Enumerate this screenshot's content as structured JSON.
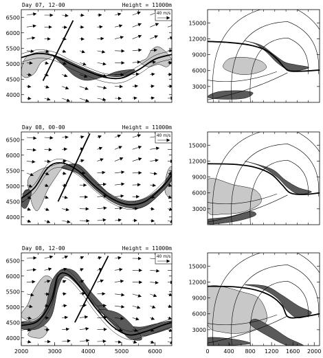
{
  "chart_data": [
    {
      "type": "contour-vector",
      "panel": "left-1",
      "title_left": "Day 07, 12-00",
      "title_right": "Height = 11000m",
      "reference_vector": "40 m/s",
      "xlim": [
        2000,
        6500
      ],
      "ylim": [
        3750,
        6750
      ],
      "x_ticks": [],
      "y_ticks": [
        "4000",
        "4500",
        "5000",
        "5500",
        "6000",
        "6500"
      ],
      "cross_section_line": [
        [
          2650,
          4450
        ],
        [
          3550,
          6400
        ]
      ],
      "front_line": [
        [
          2000,
          5200
        ],
        [
          2500,
          5330
        ],
        [
          3000,
          5250
        ],
        [
          3500,
          4980
        ],
        [
          4000,
          4750
        ],
        [
          4500,
          4560
        ],
        [
          5000,
          4540
        ],
        [
          5500,
          4800
        ],
        [
          6000,
          5150
        ],
        [
          6500,
          5300
        ]
      ],
      "light_shading": [
        [
          [
            2000,
            4700
          ],
          [
            2150,
            4550
          ],
          [
            2400,
            4700
          ],
          [
            2600,
            5050
          ],
          [
            2900,
            5220
          ],
          [
            2700,
            5380
          ],
          [
            2350,
            5330
          ],
          [
            2100,
            5150
          ]
        ],
        [
          [
            5550,
            5050
          ],
          [
            5750,
            5180
          ],
          [
            5900,
            5450
          ],
          [
            6100,
            5550
          ],
          [
            6350,
            5350
          ],
          [
            6500,
            5100
          ],
          [
            6350,
            4900
          ],
          [
            6100,
            4980
          ],
          [
            5800,
            4900
          ]
        ]
      ],
      "dark_shading": [
        [
          [
            2900,
            5300
          ],
          [
            3300,
            5150
          ],
          [
            3700,
            4950
          ],
          [
            4100,
            4760
          ],
          [
            4500,
            4620
          ],
          [
            4900,
            4580
          ],
          [
            5200,
            4650
          ],
          [
            5400,
            4800
          ],
          [
            5150,
            4800
          ],
          [
            4800,
            4730
          ],
          [
            4400,
            4560
          ],
          [
            3950,
            4460
          ],
          [
            3600,
            4600
          ],
          [
            3300,
            4900
          ],
          [
            3050,
            5150
          ]
        ]
      ]
    },
    {
      "type": "contour",
      "panel": "right-1",
      "xlim": [
        0,
        2100
      ],
      "ylim": [
        0,
        17500
      ],
      "x_ticks": [],
      "y_ticks": [
        "3000",
        "6000",
        "9000",
        "12000",
        "15000"
      ],
      "front_line": [
        [
          0,
          11500
        ],
        [
          400,
          11300
        ],
        [
          800,
          10800
        ],
        [
          1100,
          9800
        ],
        [
          1300,
          8200
        ],
        [
          1450,
          6500
        ],
        [
          1550,
          5900
        ],
        [
          1800,
          5900
        ],
        [
          2100,
          6100
        ]
      ],
      "light_shading": [
        [
          [
            300,
            6500
          ],
          [
            600,
            5300
          ],
          [
            900,
            5500
          ],
          [
            1100,
            6500
          ],
          [
            1000,
            7800
          ],
          [
            700,
            8500
          ],
          [
            400,
            8200
          ]
        ]
      ],
      "dark_shading": [
        [
          [
            700,
            11600
          ],
          [
            900,
            11000
          ],
          [
            1100,
            9500
          ],
          [
            1300,
            7500
          ],
          [
            1500,
            6200
          ],
          [
            1700,
            6000
          ],
          [
            1900,
            6600
          ],
          [
            1650,
            7100
          ],
          [
            1450,
            7600
          ],
          [
            1250,
            9000
          ],
          [
            1000,
            10800
          ]
        ],
        [
          [
            0,
            1000
          ],
          [
            300,
            600
          ],
          [
            700,
            800
          ],
          [
            850,
            1800
          ],
          [
            600,
            2200
          ],
          [
            200,
            2000
          ]
        ]
      ]
    },
    {
      "type": "contour-vector",
      "panel": "left-2",
      "title_left": "Day 08, 00-00",
      "title_right": "Height = 11000m",
      "reference_vector": "40 m/s",
      "xlim": [
        2000,
        6500
      ],
      "ylim": [
        3750,
        6750
      ],
      "x_ticks": [],
      "y_ticks": [
        "4000",
        "4500",
        "5000",
        "5500",
        "6000",
        "6500"
      ],
      "cross_section_line": [
        [
          3100,
          4500
        ],
        [
          4050,
          6700
        ]
      ],
      "front_line": [
        [
          2000,
          4600
        ],
        [
          2400,
          4950
        ],
        [
          2800,
          5600
        ],
        [
          3200,
          5750
        ],
        [
          3700,
          5500
        ],
        [
          4200,
          5000
        ],
        [
          4700,
          4600
        ],
        [
          5200,
          4400
        ],
        [
          5700,
          4500
        ],
        [
          6200,
          4950
        ],
        [
          6500,
          5350
        ]
      ],
      "light_shading": [
        [
          [
            2200,
            5200
          ],
          [
            2500,
            5500
          ],
          [
            2900,
            5650
          ],
          [
            3300,
            5750
          ],
          [
            3100,
            5400
          ],
          [
            2800,
            4900
          ],
          [
            2600,
            4400
          ],
          [
            2450,
            4200
          ],
          [
            2300,
            4500
          ]
        ],
        [
          [
            6300,
            4800
          ],
          [
            6500,
            4700
          ],
          [
            6500,
            5600
          ],
          [
            6350,
            5400
          ]
        ]
      ],
      "dark_shading": [
        [
          [
            2000,
            4400
          ],
          [
            2150,
            4300
          ],
          [
            2300,
            4800
          ],
          [
            2100,
            4850
          ]
        ],
        [
          [
            3200,
            5600
          ],
          [
            3700,
            5400
          ],
          [
            4200,
            4900
          ],
          [
            4700,
            4500
          ],
          [
            5200,
            4300
          ],
          [
            5700,
            4350
          ],
          [
            6200,
            4800
          ],
          [
            6500,
            5200
          ],
          [
            6500,
            5500
          ],
          [
            6200,
            5000
          ],
          [
            5700,
            4600
          ],
          [
            5200,
            4500
          ],
          [
            4700,
            4700
          ],
          [
            4200,
            5200
          ],
          [
            3700,
            5700
          ]
        ]
      ]
    },
    {
      "type": "contour",
      "panel": "right-2",
      "xlim": [
        0,
        2100
      ],
      "ylim": [
        0,
        17500
      ],
      "x_ticks": [],
      "y_ticks": [
        "3000",
        "6000",
        "9000",
        "12000",
        "15000"
      ],
      "front_line": [
        [
          0,
          11500
        ],
        [
          500,
          11400
        ],
        [
          900,
          10800
        ],
        [
          1200,
          9500
        ],
        [
          1400,
          7500
        ],
        [
          1550,
          6000
        ],
        [
          1800,
          5700
        ],
        [
          2100,
          6000
        ]
      ],
      "light_shading": [
        [
          [
            0,
            8500
          ],
          [
            500,
            7500
          ],
          [
            900,
            6500
          ],
          [
            1000,
            4200
          ],
          [
            700,
            2500
          ],
          [
            300,
            2000
          ],
          [
            0,
            2500
          ]
        ]
      ],
      "dark_shading": [
        [
          [
            700,
            12000
          ],
          [
            1000,
            11000
          ],
          [
            1300,
            9000
          ],
          [
            1500,
            7000
          ],
          [
            1700,
            5800
          ],
          [
            1950,
            6200
          ],
          [
            1700,
            7000
          ],
          [
            1450,
            8500
          ],
          [
            1200,
            10500
          ]
        ],
        [
          [
            0,
            1000
          ],
          [
            400,
            1500
          ],
          [
            800,
            2500
          ],
          [
            900,
            1800
          ],
          [
            600,
            800
          ],
          [
            200,
            200
          ],
          [
            0,
            200
          ]
        ]
      ]
    },
    {
      "type": "contour-vector",
      "panel": "left-3",
      "title_left": "Day 08, 12-00",
      "title_right": "Height = 11000m",
      "reference_vector": "40 m/s",
      "xlim": [
        2000,
        6500
      ],
      "ylim": [
        3750,
        6750
      ],
      "x_ticks": [
        "2000",
        "3000",
        "4000",
        "5000",
        "6000"
      ],
      "y_ticks": [
        "4000",
        "4500",
        "5000",
        "5500",
        "6000",
        "6500"
      ],
      "cross_section_line": [
        [
          3600,
          4500
        ],
        [
          4600,
          6650
        ]
      ],
      "front_line": [
        [
          2000,
          4400
        ],
        [
          2500,
          4550
        ],
        [
          2900,
          5200
        ],
        [
          3100,
          6000
        ],
        [
          3400,
          6050
        ],
        [
          3800,
          5600
        ],
        [
          4200,
          5000
        ],
        [
          4700,
          4400
        ],
        [
          5200,
          4100
        ],
        [
          5700,
          4200
        ],
        [
          6200,
          4400
        ],
        [
          6500,
          4500
        ]
      ],
      "light_shading": [
        [
          [
            2000,
            4700
          ],
          [
            2500,
            4500
          ],
          [
            2800,
            5000
          ],
          [
            2950,
            5800
          ],
          [
            2700,
            6000
          ],
          [
            2400,
            5600
          ],
          [
            2200,
            5100
          ]
        ],
        [
          [
            2200,
            4100
          ],
          [
            2600,
            4000
          ],
          [
            2800,
            4300
          ],
          [
            2500,
            4400
          ]
        ]
      ],
      "dark_shading": [
        [
          [
            2000,
            4300
          ],
          [
            2500,
            4300
          ],
          [
            2900,
            4700
          ],
          [
            3100,
            5600
          ],
          [
            3300,
            6000
          ],
          [
            3600,
            5800
          ],
          [
            4000,
            5300
          ],
          [
            4500,
            4700
          ],
          [
            5000,
            4200
          ],
          [
            5500,
            4050
          ],
          [
            6000,
            4150
          ],
          [
            6500,
            4350
          ],
          [
            6500,
            4550
          ],
          [
            6000,
            4450
          ],
          [
            5500,
            4350
          ],
          [
            5000,
            4500
          ],
          [
            4500,
            5000
          ],
          [
            4000,
            5600
          ],
          [
            3600,
            6150
          ],
          [
            3200,
            6200
          ],
          [
            2900,
            5800
          ],
          [
            2700,
            4900
          ],
          [
            2400,
            4550
          ],
          [
            2000,
            4500
          ]
        ],
        [
          [
            4300,
            4900
          ],
          [
            4800,
            4500
          ],
          [
            5200,
            4000
          ],
          [
            5600,
            3950
          ],
          [
            5400,
            4300
          ],
          [
            4900,
            4800
          ]
        ]
      ]
    },
    {
      "type": "contour",
      "panel": "right-3",
      "xlim": [
        0,
        2100
      ],
      "ylim": [
        0,
        17500
      ],
      "x_ticks": [
        "0",
        "400",
        "800",
        "1200",
        "1600",
        "2000"
      ],
      "y_ticks": [
        "3000",
        "6000",
        "9000",
        "12000",
        "15000"
      ],
      "front_line": [
        [
          0,
          11200
        ],
        [
          500,
          11100
        ],
        [
          900,
          10500
        ],
        [
          1200,
          9300
        ],
        [
          1400,
          7500
        ],
        [
          1500,
          5500
        ],
        [
          1700,
          5300
        ],
        [
          2100,
          6000
        ]
      ],
      "light_shading": [
        [
          [
            0,
            11000
          ],
          [
            700,
            10000
          ],
          [
            1000,
            8500
          ],
          [
            1100,
            4500
          ],
          [
            700,
            2500
          ],
          [
            300,
            2500
          ],
          [
            0,
            4000
          ]
        ]
      ],
      "dark_shading": [
        [
          [
            700,
            11500
          ],
          [
            1000,
            10800
          ],
          [
            1300,
            9000
          ],
          [
            1500,
            6500
          ],
          [
            1700,
            5200
          ],
          [
            1950,
            6200
          ],
          [
            1700,
            7500
          ],
          [
            1400,
            9500
          ],
          [
            1100,
            11200
          ]
        ],
        [
          [
            900,
            5000
          ],
          [
            1200,
            3500
          ],
          [
            1500,
            1500
          ],
          [
            1800,
            0
          ],
          [
            1500,
            0
          ],
          [
            1100,
            2000
          ],
          [
            800,
            4000
          ]
        ],
        [
          [
            0,
            1500
          ],
          [
            500,
            1200
          ],
          [
            800,
            400
          ],
          [
            300,
            0
          ],
          [
            0,
            0
          ]
        ]
      ]
    }
  ]
}
